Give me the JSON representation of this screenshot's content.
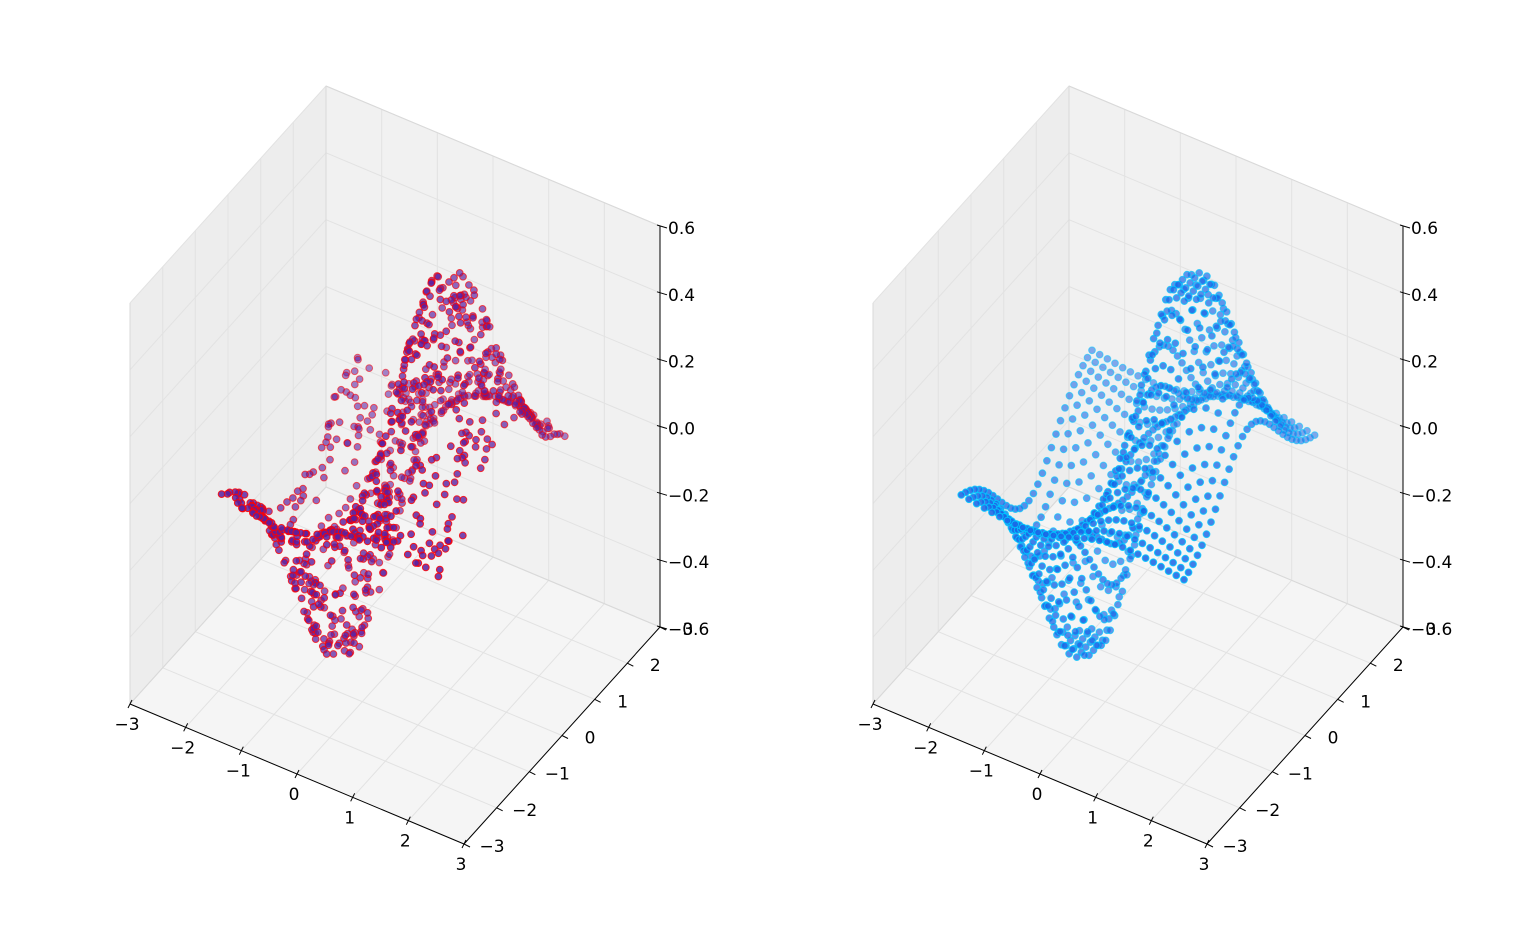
{
  "figure": {
    "background": "#ffffff",
    "pane_colors": {
      "back_left": "#ededed",
      "back_right": "#f1f1f1",
      "floor": "#f5f5f5",
      "edge": "#d9d9d9",
      "grid": "#e2e2e2"
    }
  },
  "chart_data": [
    {
      "type": "scatter",
      "projection": "3d",
      "title": "",
      "xlabel": "",
      "ylabel": "",
      "zlabel": "",
      "xlim": [
        -3,
        3
      ],
      "ylim": [
        -3,
        3
      ],
      "zlim": [
        -0.6,
        0.6
      ],
      "grid": true,
      "x_ticks": [
        "−3",
        "−2",
        "−1",
        "0",
        "1",
        "2",
        "3"
      ],
      "y_ticks": [
        "−3",
        "−2",
        "−1",
        "0",
        "1",
        "2",
        "3"
      ],
      "z_ticks": [
        "−0.6",
        "−0.4",
        "−0.2",
        "0.0",
        "0.2",
        "0.4",
        "0.6"
      ],
      "marker_face": "#5a1fa0",
      "marker_edge": "#ff0000",
      "series": [
        {
          "sampling": "random",
          "count": 900,
          "x_range": [
            -2,
            2
          ],
          "y_range": [
            -2,
            2
          ],
          "function": "z = x * exp(-(x^2 + y^2)) with sign ridges along x and y",
          "z_range": [
            -0.5,
            0.5
          ]
        }
      ]
    },
    {
      "type": "scatter",
      "projection": "3d",
      "title": "",
      "xlabel": "",
      "ylabel": "",
      "zlabel": "",
      "xlim": [
        -3,
        3
      ],
      "ylim": [
        -3,
        3
      ],
      "zlim": [
        -0.6,
        0.6
      ],
      "grid": true,
      "x_ticks": [
        "−3",
        "−2",
        "−1",
        "0",
        "1",
        "2",
        "3"
      ],
      "y_ticks": [
        "−3",
        "−2",
        "−1",
        "0",
        "1",
        "2",
        "3"
      ],
      "z_ticks": [
        "−0.6",
        "−0.4",
        "−0.2",
        "0.0",
        "0.2",
        "0.4",
        "0.6"
      ],
      "marker_face": "#1a66e6",
      "marker_edge": "#00c8ff",
      "series": [
        {
          "sampling": "grid",
          "grid_size": 30,
          "x_range": [
            -2,
            2
          ],
          "y_range": [
            -2,
            2
          ],
          "function": "z = x * exp(-(x^2 + y^2)) with sign ridges along x and y",
          "z_range": [
            -0.5,
            0.5
          ]
        }
      ]
    }
  ]
}
